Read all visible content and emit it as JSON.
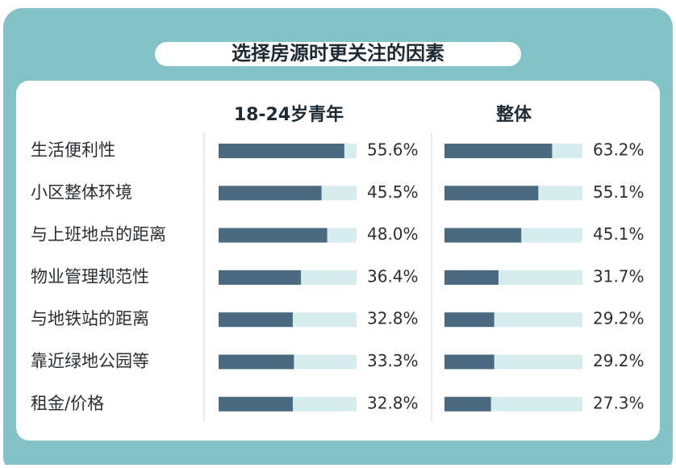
{
  "chart_data": {
    "type": "bar",
    "orientation": "horizontal",
    "title": "选择房源时更关注的因素",
    "categories": [
      "生活便利性",
      "小区整体环境",
      "与上班地点的距离",
      "物业管理规范性",
      "与地铁站的距离",
      "靠近绿地公园等",
      "租金/价格"
    ],
    "series": [
      {
        "name": "18-24岁青年",
        "color": "#4a6a80",
        "xlim": [
          0,
          61
        ],
        "values": [
          55.6,
          45.5,
          48.0,
          36.4,
          32.8,
          33.3,
          32.8
        ],
        "value_labels": [
          "55.6%",
          "45.5%",
          "48.0%",
          "36.4%",
          "32.8%",
          "33.3%",
          "32.8%"
        ]
      },
      {
        "name": "整体",
        "color": "#4a6a80",
        "xlim": [
          0,
          81
        ],
        "values": [
          63.2,
          55.1,
          45.1,
          31.7,
          29.2,
          29.2,
          27.3
        ],
        "value_labels": [
          "63.2%",
          "55.1%",
          "45.1%",
          "31.7%",
          "29.2%",
          "29.2%",
          "27.3%"
        ]
      }
    ]
  }
}
